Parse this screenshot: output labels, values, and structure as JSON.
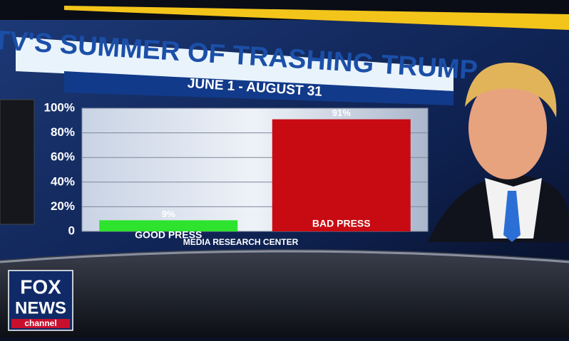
{
  "chart_data": {
    "type": "bar",
    "title": "TV'S SUMMER OF TRASHING TRUMP",
    "subtitle": "JUNE 1 - AUGUST 31",
    "source": "MEDIA RESEARCH CENTER",
    "categories": [
      "GOOD PRESS",
      "BAD PRESS"
    ],
    "values": [
      9,
      91
    ],
    "value_labels": [
      "9%",
      "91%"
    ],
    "colors": [
      "#2de32d",
      "#c80a12"
    ],
    "ylim": [
      0,
      100
    ],
    "yticks": [
      0,
      {
        "value": 20,
        "label": "20%"
      },
      {
        "value": 40,
        "label": "40%"
      },
      {
        "value": 60,
        "label": "60%"
      },
      {
        "value": 80,
        "label": "80%"
      },
      {
        "value": 100,
        "label": "100%"
      }
    ],
    "grid": true
  },
  "logo": {
    "lines": [
      "FOX",
      "NEWS",
      "channel"
    ]
  }
}
